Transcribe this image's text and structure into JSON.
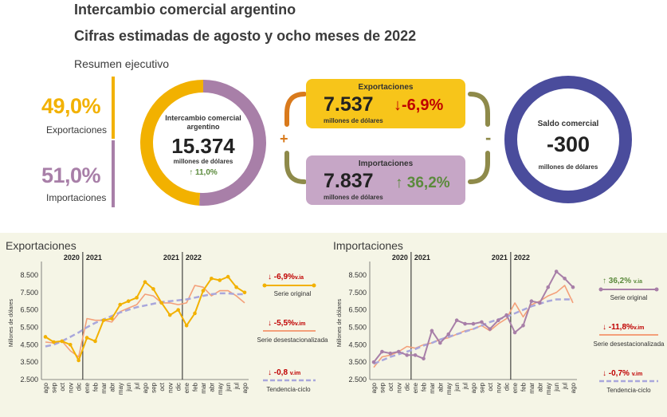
{
  "header": {
    "title": "Intercambio comercial argentino",
    "subtitle": "Cifras estimadas de agosto y ocho meses de 2022",
    "summary_label": "Resumen ejecutivo"
  },
  "shares": {
    "exports_pct": "49,0%",
    "exports_label": "Exportaciones",
    "imports_pct": "51,0%",
    "imports_label": "Importaciones"
  },
  "donut": {
    "label": "Intercambio comercial argentino",
    "value": "15.374",
    "unit": "millones de dólares",
    "change_arrow": "↑",
    "change": "11,0%",
    "exports_fraction": 0.49
  },
  "exports_box": {
    "label": "Exportaciones",
    "value": "7.537",
    "unit": "millones de dólares",
    "change_arrow": "↓",
    "change": "-6,9%"
  },
  "imports_box": {
    "label": "Importaciones",
    "value": "7.837",
    "unit": "millones de dólares",
    "change_arrow": "↑",
    "change": "36,2%"
  },
  "operators": {
    "plus": "+",
    "minus": "-"
  },
  "balance": {
    "label": "Saldo comercial",
    "value": "-300",
    "unit": "millones de dólares"
  },
  "colors": {
    "exports": "#f2b100",
    "imports": "#a87fa8",
    "balance": "#4a4c9c",
    "decline": "#c00000",
    "growth": "#5b8a3c",
    "seasonal": "#f4a07a",
    "trend": "#a9a7dc",
    "bracket_orange": "#d97a1c",
    "bracket_olive": "#8e8a4a"
  },
  "chart_data": [
    {
      "type": "line",
      "title": "Exportaciones",
      "ylabel": "Millones de dólares",
      "ylim": [
        2500,
        9000
      ],
      "yticks": [
        "2.500",
        "3.500",
        "4.500",
        "5.500",
        "6.500",
        "7.500",
        "8.500"
      ],
      "ytick_values": [
        2500,
        3500,
        4500,
        5500,
        6500,
        7500,
        8500
      ],
      "year_markers": [
        {
          "left": "2020",
          "right": "2021",
          "after_index": 4
        },
        {
          "left": "2021",
          "right": "2022",
          "after_index": 16
        }
      ],
      "categories": [
        "ago",
        "sep",
        "oct",
        "nov",
        "dic",
        "ene",
        "feb",
        "mar",
        "abr",
        "may",
        "jun",
        "jul",
        "ago",
        "sep",
        "oct",
        "nov",
        "dic",
        "ene",
        "feb",
        "mar",
        "abr",
        "may",
        "jun",
        "jul",
        "ago"
      ],
      "series": [
        {
          "name": "Serie original",
          "values": [
            4950,
            4650,
            4700,
            4500,
            3600,
            4900,
            4700,
            5900,
            6000,
            6800,
            7000,
            7200,
            8100,
            7700,
            6900,
            6200,
            6500,
            5600,
            6300,
            7600,
            8300,
            8200,
            8400,
            7800,
            7500
          ]
        },
        {
          "name": "Serie desestacionalizada",
          "values": [
            4650,
            4600,
            4700,
            4150,
            3800,
            6000,
            5900,
            5900,
            5800,
            6400,
            6600,
            6800,
            7400,
            7300,
            6900,
            6900,
            6800,
            6900,
            7900,
            7800,
            7300,
            7600,
            7600,
            7300,
            6900
          ]
        },
        {
          "name": "Tendencia-ciclo",
          "values": [
            4400,
            4500,
            4700,
            4950,
            5200,
            5500,
            5750,
            5950,
            6150,
            6350,
            6500,
            6650,
            6750,
            6850,
            6950,
            7000,
            7050,
            7100,
            7200,
            7300,
            7400,
            7450,
            7450,
            7400,
            7400
          ]
        }
      ],
      "legend": [
        {
          "arrow": "↓",
          "value": "-6,9%",
          "suffix": "v.ia",
          "name": "Serie original"
        },
        {
          "arrow": "↓",
          "value": "-5,5%",
          "suffix": "v.im",
          "name": "Serie desestacionalizada"
        },
        {
          "arrow": "↓",
          "value": "-0,8",
          "suffix": "v.im",
          "name": "Tendencia-ciclo"
        }
      ]
    },
    {
      "type": "line",
      "title": "Importaciones",
      "ylabel": "Millones de dólares",
      "ylim": [
        2500,
        9000
      ],
      "yticks": [
        "2.500",
        "3.500",
        "4.500",
        "5.500",
        "6.500",
        "7.500",
        "8.500"
      ],
      "ytick_values": [
        2500,
        3500,
        4500,
        5500,
        6500,
        7500,
        8500
      ],
      "year_markers": [
        {
          "left": "2020",
          "right": "2021",
          "after_index": 4
        },
        {
          "left": "2021",
          "right": "2022",
          "after_index": 16
        }
      ],
      "categories": [
        "ago",
        "sep",
        "oct",
        "nov",
        "dic",
        "ene",
        "feb",
        "mar",
        "abr",
        "may",
        "jun",
        "jul",
        "ago",
        "sep",
        "oct",
        "nov",
        "dic",
        "ene",
        "feb",
        "mar",
        "abr",
        "may",
        "jun",
        "jul",
        "ago"
      ],
      "series": [
        {
          "name": "Serie original",
          "values": [
            3500,
            4100,
            4000,
            4100,
            3900,
            3900,
            3700,
            5300,
            4600,
            5100,
            5900,
            5700,
            5700,
            5800,
            5400,
            5900,
            6200,
            5200,
            5600,
            7000,
            6900,
            7800,
            8700,
            8300,
            7800
          ]
        },
        {
          "name": "Serie desestacionalizada",
          "values": [
            3200,
            3800,
            3900,
            4100,
            4400,
            4300,
            4500,
            4600,
            4800,
            4900,
            5100,
            5300,
            5400,
            5600,
            5300,
            5700,
            6000,
            6900,
            6100,
            6800,
            7000,
            7300,
            7500,
            7900,
            6900
          ]
        },
        {
          "name": "Tendencia-ciclo",
          "values": [
            3400,
            3600,
            3800,
            3950,
            4100,
            4250,
            4450,
            4600,
            4800,
            4950,
            5100,
            5250,
            5400,
            5600,
            5800,
            5950,
            6100,
            6300,
            6500,
            6700,
            6850,
            7000,
            7100,
            7100,
            7100
          ]
        }
      ],
      "legend": [
        {
          "arrow": "↑",
          "value": "36,2%",
          "suffix": "v.ia",
          "name": "Serie original"
        },
        {
          "arrow": "↓",
          "value": "-11,8%",
          "suffix": "v.im",
          "name": "Serie desestacionalizada"
        },
        {
          "arrow": "↓",
          "value": "-0,7%",
          "suffix": "v.im",
          "name": "Tendencia-ciclo"
        }
      ]
    }
  ]
}
